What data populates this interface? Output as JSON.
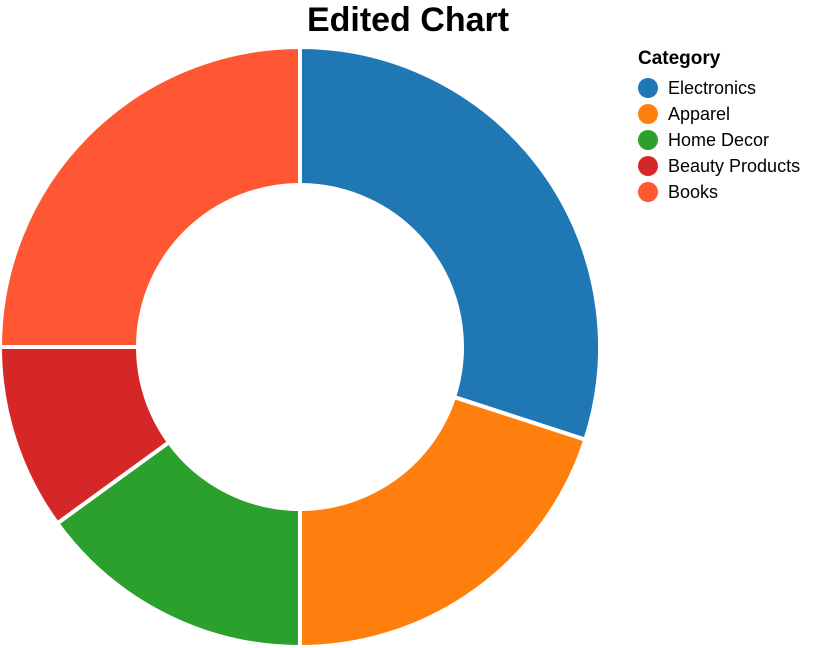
{
  "chart_data": {
    "type": "pie",
    "title": "Edited Chart",
    "donut": true,
    "legend_title": "Category",
    "legend_position": "top-right",
    "categories": [
      "Electronics",
      "Apparel",
      "Home Decor",
      "Beauty Products",
      "Books"
    ],
    "values": [
      30,
      20,
      15,
      10,
      25
    ],
    "colors": [
      "#1f77b4",
      "#ff7f0e",
      "#2ca02c",
      "#d62728",
      "#ff5733"
    ]
  }
}
